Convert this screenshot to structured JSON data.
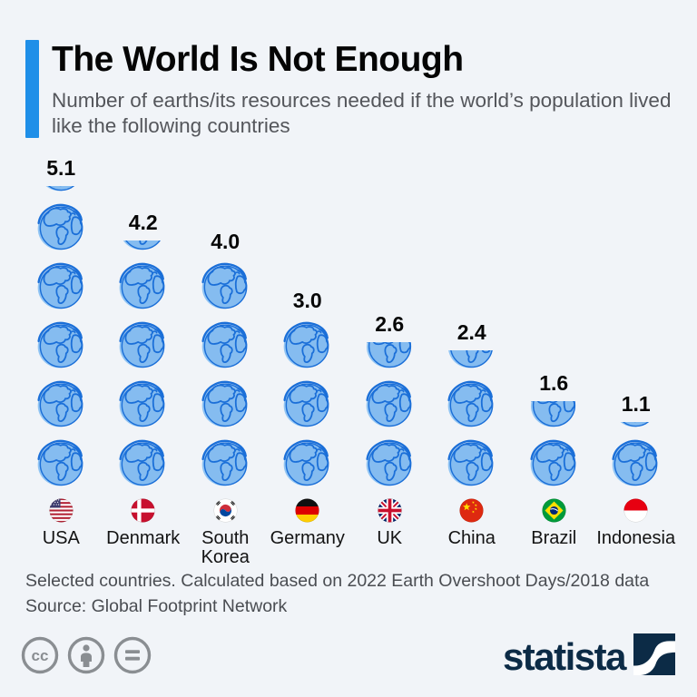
{
  "header": {
    "title": "The World Is Not Enough",
    "subtitle": "Number of earths/its resources needed if the world’s population lived like the following countries"
  },
  "chart_data": {
    "type": "pictogram-bar",
    "icon": "earth-globe",
    "unit": "earths",
    "categories": [
      "USA",
      "Denmark",
      "South Korea",
      "Germany",
      "UK",
      "China",
      "Brazil",
      "Indonesia"
    ],
    "values": [
      5.1,
      4.2,
      4.0,
      3.0,
      2.6,
      2.4,
      1.6,
      1.1
    ],
    "value_labels": [
      "5.1",
      "4.2",
      "4.0",
      "3.0",
      "2.6",
      "2.4",
      "1.6",
      "1.1"
    ],
    "flag_codes": [
      "us",
      "dk",
      "kr",
      "de",
      "gb",
      "cn",
      "br",
      "id"
    ],
    "title": "The World Is Not Enough",
    "xlabel": "",
    "ylabel": "",
    "ylim": [
      0,
      6
    ],
    "legend": false,
    "grid": false
  },
  "footer": {
    "note": "Selected countries. Calculated based on 2022 Earth Overshoot Days/2018 data",
    "source": "Source: Global Footprint Network",
    "license_icons": [
      "cc",
      "attribution",
      "no-derivatives"
    ],
    "brand": "statista"
  },
  "colors": {
    "background": "#f1f4f8",
    "accent_blue": "#1F8FE8",
    "earth_fill": "#85BCF0",
    "earth_halo": "#92C5F3",
    "earth_line": "#1B6FD8",
    "subtitle_gray": "#54565B",
    "footnote_gray": "#4A4D52",
    "license_gray": "#8A8E92",
    "brand_navy": "#0C2B46"
  }
}
